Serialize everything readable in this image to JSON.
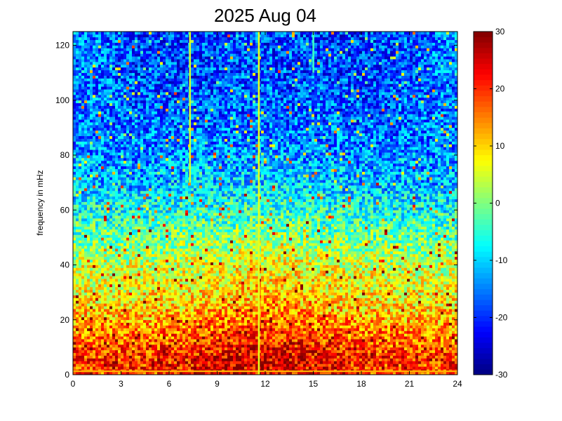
{
  "chart_data": {
    "type": "heatmap",
    "title": "2025 Aug 04",
    "xlabel": "",
    "ylabel": "frequency in mHz",
    "xlim": [
      0,
      24
    ],
    "ylim": [
      0,
      125
    ],
    "x_ticks": [
      0,
      3,
      6,
      9,
      12,
      15,
      18,
      21,
      24
    ],
    "y_ticks": [
      0,
      20,
      40,
      60,
      80,
      100,
      120
    ],
    "colorbar": {
      "colormap": "jet",
      "range": [
        -30,
        30
      ],
      "ticks": [
        -30,
        -20,
        -10,
        0,
        10,
        20,
        30
      ]
    },
    "grid": false,
    "spectral_profile_db": [
      {
        "frequency": 1,
        "level": 18
      },
      {
        "frequency": 5,
        "level": 20
      },
      {
        "frequency": 15,
        "level": 15
      },
      {
        "frequency": 25,
        "level": 9
      },
      {
        "frequency": 40,
        "level": 4
      },
      {
        "frequency": 55,
        "level": -4
      },
      {
        "frequency": 70,
        "level": -12
      },
      {
        "frequency": 90,
        "level": -17
      },
      {
        "frequency": 110,
        "level": -19
      },
      {
        "frequency": 125,
        "level": -19
      }
    ],
    "vertical_lines": [
      {
        "time": 7.3,
        "frequency_from": 70,
        "frequency_to": 125,
        "level": 5
      },
      {
        "time": 11.6,
        "frequency_from": 0,
        "frequency_to": 125,
        "level": 6
      },
      {
        "time": 15.0,
        "frequency_from": 110,
        "frequency_to": 125,
        "level": -4
      }
    ]
  }
}
